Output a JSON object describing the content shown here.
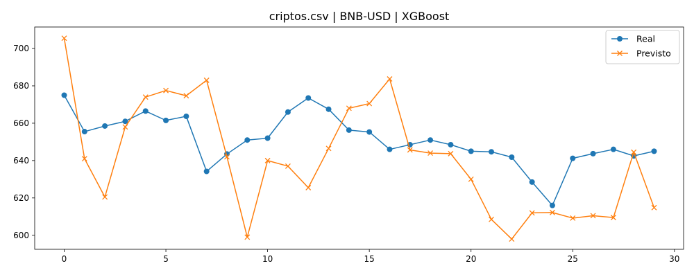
{
  "chart_data": {
    "type": "line",
    "title": "criptos.csv | BNB-USD | XGBoost",
    "xlabel": "",
    "ylabel": "",
    "x": [
      0,
      1,
      2,
      3,
      4,
      5,
      6,
      7,
      8,
      9,
      10,
      11,
      12,
      13,
      14,
      15,
      16,
      17,
      18,
      19,
      20,
      21,
      22,
      23,
      24,
      25,
      26,
      27,
      28,
      29
    ],
    "xlim": [
      -1.45,
      30.45
    ],
    "ylim": [
      592.5,
      711.5
    ],
    "xticks": [
      0,
      5,
      10,
      15,
      20,
      25,
      30
    ],
    "yticks": [
      600,
      620,
      640,
      660,
      680,
      700
    ],
    "grid": false,
    "legend_position": "upper-right",
    "series": [
      {
        "name": "Real",
        "color": "#1f77b4",
        "marker": "circle",
        "values": [
          675.0,
          655.5,
          658.5,
          661.0,
          666.5,
          661.5,
          663.7,
          634.2,
          643.5,
          651.0,
          652.0,
          666.0,
          673.5,
          667.5,
          656.3,
          655.3,
          646.0,
          648.5,
          651.0,
          648.5,
          645.0,
          644.7,
          641.8,
          628.5,
          616.0,
          641.2,
          643.7,
          646.0,
          642.5,
          645.0
        ]
      },
      {
        "name": "Previsto",
        "color": "#ff7f0e",
        "marker": "x",
        "values": [
          705.5,
          641.0,
          620.5,
          658.0,
          674.0,
          677.5,
          674.7,
          683.0,
          642.0,
          599.0,
          640.0,
          637.0,
          625.5,
          646.5,
          668.0,
          670.5,
          683.7,
          645.7,
          644.0,
          643.7,
          630.0,
          608.5,
          598.0,
          612.0,
          612.2,
          609.2,
          610.5,
          609.5,
          644.5,
          614.8
        ]
      }
    ]
  }
}
